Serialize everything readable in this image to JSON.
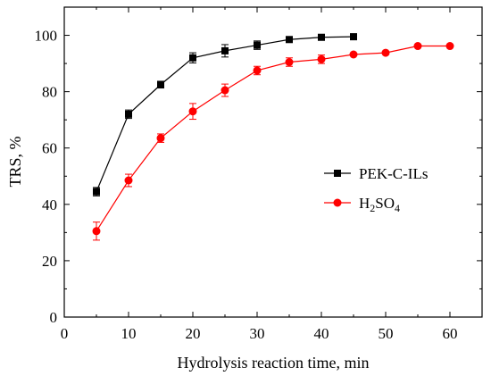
{
  "chart_data": {
    "type": "line",
    "xlabel": "Hydrolysis reaction time, min",
    "ylabel": "TRS, %",
    "xlim": [
      0,
      65
    ],
    "ylim": [
      0,
      110
    ],
    "x_ticks": [
      0,
      10,
      20,
      30,
      40,
      50,
      60
    ],
    "y_ticks": [
      0,
      20,
      40,
      60,
      80,
      100
    ],
    "grid": false,
    "legend_position": "right-center",
    "series": [
      {
        "name": "PEK-C-ILs",
        "color": "#000000",
        "marker": "square",
        "x": [
          5,
          10,
          15,
          20,
          25,
          30,
          35,
          40,
          45
        ],
        "y": [
          44.5,
          72,
          82.5,
          92,
          94.5,
          96.5,
          98.5,
          99.3,
          99.5
        ],
        "err": [
          1.5,
          1.5,
          1.2,
          1.8,
          2.2,
          1.5,
          0.8,
          0.5,
          0.5
        ]
      },
      {
        "name": "H2SO4",
        "name_parts": [
          "H",
          "2",
          "SO",
          "4"
        ],
        "color": "#ff0000",
        "marker": "circle",
        "x": [
          5,
          10,
          15,
          20,
          25,
          30,
          35,
          40,
          45,
          50,
          55,
          60
        ],
        "y": [
          30.5,
          48.5,
          63.5,
          73,
          80.5,
          87.5,
          90.5,
          91.5,
          93.2,
          93.8,
          96.2,
          96.2
        ],
        "err": [
          3.2,
          2.2,
          1.5,
          2.8,
          2.2,
          1.5,
          1.5,
          1.5,
          0.5,
          0.5,
          0.5,
          0.5
        ]
      }
    ]
  }
}
